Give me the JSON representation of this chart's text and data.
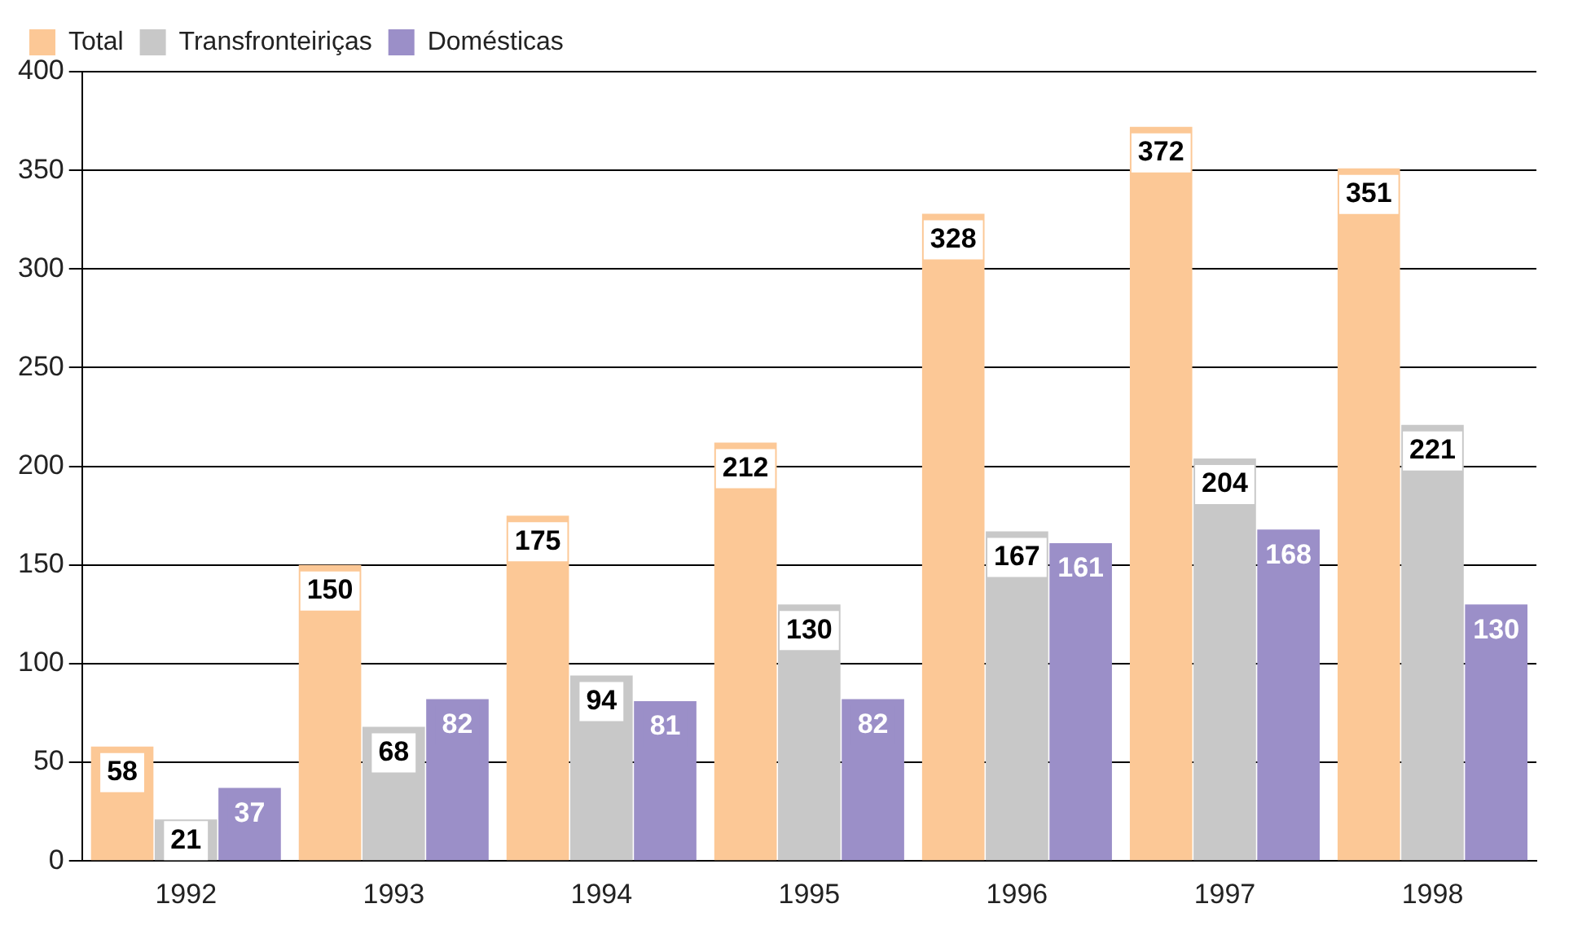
{
  "chart_data": {
    "type": "bar",
    "categories": [
      "1992",
      "1993",
      "1994",
      "1995",
      "1996",
      "1997",
      "1998"
    ],
    "series": [
      {
        "name": "Total",
        "color": "#fcc896",
        "values": [
          58,
          150,
          175,
          212,
          328,
          372,
          351
        ]
      },
      {
        "name": "Transfronteiriças",
        "color": "#c8c8c8",
        "values": [
          21,
          68,
          94,
          130,
          167,
          204,
          221
        ]
      },
      {
        "name": "Domésticas",
        "color": "#9b8fc8",
        "values": [
          37,
          82,
          81,
          82,
          161,
          168,
          130
        ]
      }
    ],
    "ylim": [
      0,
      400
    ],
    "yticks": [
      0,
      50,
      100,
      150,
      200,
      250,
      300,
      350,
      400
    ],
    "grid": "y",
    "legend": "top left",
    "data_labels": true
  }
}
